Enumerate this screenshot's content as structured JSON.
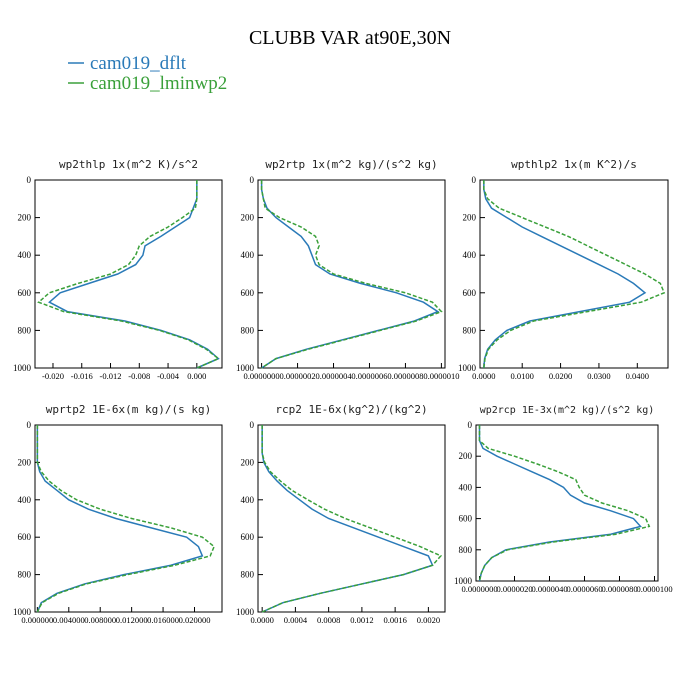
{
  "title": "CLUBB VAR at90E,30N",
  "series": [
    {
      "name": "cam019_dflt",
      "color": "#2a7ab8",
      "dash": false
    },
    {
      "name": "cam019_lminwp2",
      "color": "#3aa03a",
      "dash": true
    }
  ],
  "levels": [
    0,
    50,
    100,
    150,
    200,
    250,
    300,
    350,
    400,
    450,
    500,
    550,
    600,
    650,
    700,
    750,
    800,
    850,
    900,
    950,
    1000
  ],
  "chart_data": [
    {
      "type": "line",
      "title": "wp2thlp  1x(m^2 K)/s^2",
      "values": [
        [
          0,
          0,
          0,
          -0.0005,
          -0.001,
          -0.003,
          -0.005,
          -0.0072,
          -0.0075,
          -0.0085,
          -0.011,
          -0.015,
          -0.019,
          -0.0205,
          -0.018,
          -0.01,
          -0.005,
          -0.001,
          0.0015,
          0.003,
          0.0
        ],
        [
          0,
          0,
          0,
          -0.0002,
          -0.002,
          -0.004,
          -0.0065,
          -0.008,
          -0.0085,
          -0.0095,
          -0.012,
          -0.0165,
          -0.0205,
          -0.022,
          -0.0185,
          -0.0105,
          -0.0052,
          -0.0012,
          0.0013,
          0.003,
          0.0
        ]
      ],
      "xlim": [
        -0.0225,
        0.0035
      ],
      "xticks": [
        {
          "value": -0.02,
          "label": "-0.020"
        },
        {
          "value": -0.016,
          "label": "-0.016"
        },
        {
          "value": -0.012,
          "label": "-0.012"
        },
        {
          "value": -0.008,
          "label": "-0.008"
        },
        {
          "value": -0.004,
          "label": "-0.004"
        },
        {
          "value": 0,
          "label": "0.000"
        }
      ],
      "ylim": [
        1000,
        0
      ],
      "yticks": [
        0,
        200,
        400,
        600,
        800,
        1000
      ]
    },
    {
      "type": "line",
      "title": "wp2rtp  1x(m^2 kg)/(s^2 kg)",
      "values": [
        [
          0,
          0,
          1e-08,
          3e-08,
          8e-08,
          1.5e-07,
          2.2e-07,
          2.6e-07,
          2.8e-07,
          3e-07,
          3.8e-07,
          5.5e-07,
          7.5e-07,
          9e-07,
          9.8e-07,
          8.5e-07,
          6.5e-07,
          4.5e-07,
          2.5e-07,
          8e-08,
          0
        ],
        [
          0,
          0,
          1e-08,
          2e-08,
          1e-07,
          2.2e-07,
          3e-07,
          3.2e-07,
          3e-07,
          3.2e-07,
          4e-07,
          5.8e-07,
          8e-07,
          9.5e-07,
          1e-06,
          8.6e-07,
          6.6e-07,
          4.6e-07,
          2.6e-07,
          8e-08,
          0
        ]
      ],
      "xlim": [
        -2e-08,
        1.02e-06
      ],
      "xticks": [
        {
          "value": 0,
          "label": "0.0000000"
        },
        {
          "value": 2e-07,
          "label": "0.0000002"
        },
        {
          "value": 4e-07,
          "label": "0.0000004"
        },
        {
          "value": 6e-07,
          "label": "0.0000006"
        },
        {
          "value": 8e-07,
          "label": "0.0000008"
        },
        {
          "value": 1e-06,
          "label": "0.0000010"
        }
      ],
      "ylim": [
        1000,
        0
      ],
      "yticks": [
        0,
        200,
        400,
        600,
        800,
        1000
      ]
    },
    {
      "type": "line",
      "title": "wpthlp2  1x(m K^2)/s",
      "values": [
        [
          0,
          0,
          0.0005,
          0.002,
          0.006,
          0.01,
          0.015,
          0.02,
          0.025,
          0.03,
          0.035,
          0.039,
          0.042,
          0.038,
          0.025,
          0.012,
          0.006,
          0.003,
          0.001,
          0.0002,
          0
        ],
        [
          0,
          0,
          0.001,
          0.004,
          0.01,
          0.016,
          0.022,
          0.027,
          0.032,
          0.037,
          0.042,
          0.046,
          0.047,
          0.041,
          0.027,
          0.013,
          0.007,
          0.0035,
          0.0012,
          0.0003,
          0
        ]
      ],
      "xlim": [
        -0.001,
        0.048
      ],
      "xticks": [
        {
          "value": 0,
          "label": "0.0000"
        },
        {
          "value": 0.01,
          "label": "0.0100"
        },
        {
          "value": 0.02,
          "label": "0.0200"
        },
        {
          "value": 0.03,
          "label": "0.0300"
        },
        {
          "value": 0.04,
          "label": "0.0400"
        }
      ],
      "ylim": [
        1000,
        0
      ],
      "yticks": [
        0,
        200,
        400,
        600,
        800,
        1000
      ]
    },
    {
      "type": "line",
      "title": "wprtp2  1E-6x(m kg)/(s kg)",
      "values": [
        [
          0,
          0,
          0,
          0,
          0,
          0.0003,
          0.001,
          0.0025,
          0.004,
          0.0065,
          0.01,
          0.0145,
          0.019,
          0.0205,
          0.021,
          0.017,
          0.011,
          0.006,
          0.0025,
          0.0005,
          0
        ],
        [
          0,
          0,
          0,
          0,
          0,
          0.0005,
          0.0015,
          0.003,
          0.005,
          0.008,
          0.012,
          0.017,
          0.021,
          0.0225,
          0.022,
          0.0175,
          0.0115,
          0.0062,
          0.0027,
          0.0006,
          0
        ]
      ],
      "xlim": [
        -0.0003,
        0.0235
      ],
      "xticks": [
        {
          "value": 0,
          "label": "0.000000"
        },
        {
          "value": 0.004,
          "label": "0.004000"
        },
        {
          "value": 0.008,
          "label": "0.008000"
        },
        {
          "value": 0.012,
          "label": "0.012000"
        },
        {
          "value": 0.016,
          "label": "0.016000"
        },
        {
          "value": 0.02,
          "label": "0.020000"
        }
      ],
      "ylim": [
        1000,
        0
      ],
      "yticks": [
        0,
        200,
        400,
        600,
        800,
        1000
      ]
    },
    {
      "type": "line",
      "title": "rcp2  1E-6x(kg^2)/(kg^2)",
      "values": [
        [
          0,
          0,
          0,
          0,
          2e-05,
          8e-05,
          0.00018,
          0.0003,
          0.00045,
          0.0006,
          0.0008,
          0.0011,
          0.0014,
          0.0017,
          0.002,
          0.00205,
          0.0017,
          0.0012,
          0.0007,
          0.00025,
          0
        ],
        [
          0,
          0,
          0,
          0,
          3e-05,
          0.0001,
          0.00022,
          0.00036,
          0.00055,
          0.00075,
          0.001,
          0.0013,
          0.0016,
          0.0019,
          0.00215,
          0.00205,
          0.0017,
          0.0012,
          0.0007,
          0.00025,
          0
        ]
      ],
      "xlim": [
        -5e-05,
        0.0022
      ],
      "xticks": [
        {
          "value": 0,
          "label": "0.0000"
        },
        {
          "value": 0.0004,
          "label": "0.0004"
        },
        {
          "value": 0.0008,
          "label": "0.0008"
        },
        {
          "value": 0.0012,
          "label": "0.0012"
        },
        {
          "value": 0.0016,
          "label": "0.0016"
        },
        {
          "value": 0.002,
          "label": "0.0020"
        }
      ],
      "ylim": [
        1000,
        0
      ],
      "yticks": [
        0,
        200,
        400,
        600,
        800,
        1000
      ]
    },
    {
      "type": "line",
      "title": "wp2rcp  1E-3x(m^2 kg)/(s^2 kg)",
      "values": [
        [
          0,
          0,
          0,
          2e-07,
          1e-06,
          2e-06,
          3e-06,
          4e-06,
          4.8e-06,
          5.2e-06,
          6e-06,
          7.5e-06,
          8.8e-06,
          9.2e-06,
          7.5e-06,
          4e-06,
          1.5e-06,
          7e-07,
          3e-07,
          1e-07,
          0
        ],
        [
          0,
          0,
          0,
          5e-07,
          2e-06,
          3.3e-06,
          4.5e-06,
          5.5e-06,
          5.7e-06,
          6e-06,
          7e-06,
          8.5e-06,
          9.5e-06,
          9.7e-06,
          7.8e-06,
          4.2e-06,
          1.6e-06,
          7e-07,
          3e-07,
          1e-07,
          0
        ]
      ],
      "xlim": [
        -2e-07,
        1.02e-05
      ],
      "xticks": [
        {
          "value": 0,
          "label": "0.0000000"
        },
        {
          "value": 2e-06,
          "label": "0.0000020"
        },
        {
          "value": 4e-06,
          "label": "0.0000040"
        },
        {
          "value": 6e-06,
          "label": "0.0000060"
        },
        {
          "value": 8e-06,
          "label": "0.0000080"
        },
        {
          "value": 1e-05,
          "label": "0.0000100"
        }
      ],
      "ylim": [
        1000,
        0
      ],
      "yticks": [
        0,
        200,
        400,
        600,
        800,
        1000
      ]
    }
  ]
}
